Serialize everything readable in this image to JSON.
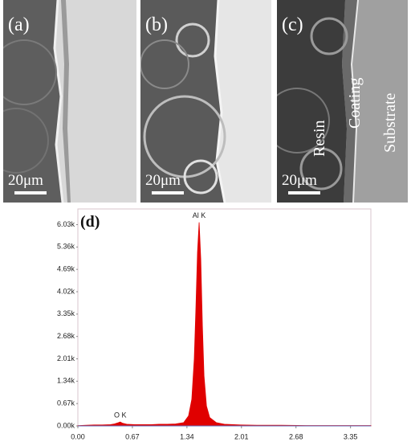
{
  "panels": [
    {
      "label": "(a)",
      "scale_bar": "20μm"
    },
    {
      "label": "(b)",
      "scale_bar": "20μm"
    },
    {
      "label": "(c)",
      "scale_bar": "20μm"
    }
  ],
  "layer_labels": [
    "Resin",
    "Coating",
    "Substrate"
  ],
  "chart_data": {
    "type": "area",
    "panel_label": "(d)",
    "color": "#e00000",
    "x": [
      0,
      0.1,
      0.2,
      0.3,
      0.4,
      0.45,
      0.5,
      0.52,
      0.55,
      0.6,
      0.7,
      0.8,
      0.9,
      1.0,
      1.1,
      1.2,
      1.3,
      1.36,
      1.4,
      1.43,
      1.45,
      1.47,
      1.49,
      1.51,
      1.53,
      1.55,
      1.58,
      1.62,
      1.7,
      1.8,
      2.0,
      2.2,
      2.5,
      2.8,
      3.1,
      3.4,
      3.6
    ],
    "values": [
      0.01,
      0.02,
      0.03,
      0.03,
      0.04,
      0.06,
      0.1,
      0.12,
      0.08,
      0.05,
      0.04,
      0.04,
      0.04,
      0.05,
      0.05,
      0.06,
      0.1,
      0.3,
      0.8,
      2.0,
      3.5,
      5.2,
      6.1,
      5.0,
      3.0,
      1.5,
      0.6,
      0.25,
      0.1,
      0.05,
      0.03,
      0.02,
      0.02,
      0.01,
      0.01,
      0.01,
      0.01
    ],
    "annotations": [
      {
        "text": "O  K",
        "x": 0.52
      },
      {
        "text": "Al K",
        "x": 1.49
      }
    ],
    "xlim": [
      0,
      3.6
    ],
    "ylim": [
      0,
      6.5
    ],
    "xticks": [
      {
        "value": 0,
        "label": "0.00"
      },
      0.67,
      1.34,
      2.01,
      2.68,
      3.35
    ],
    "yticks": [
      {
        "value": 0,
        "label": "0.00k"
      },
      {
        "value": 0.67,
        "label": "0.67k"
      },
      {
        "value": 1.34,
        "label": "1.34k"
      },
      {
        "value": 2.01,
        "label": "2.01k"
      },
      {
        "value": 2.68,
        "label": "2.68k"
      },
      {
        "value": 3.35,
        "label": "3.35k"
      },
      {
        "value": 4.02,
        "label": "4.02k"
      },
      {
        "value": 4.69,
        "label": "4.69k"
      },
      {
        "value": 5.36,
        "label": "5.36k"
      },
      {
        "value": 6.03,
        "label": "6.03k"
      }
    ]
  }
}
